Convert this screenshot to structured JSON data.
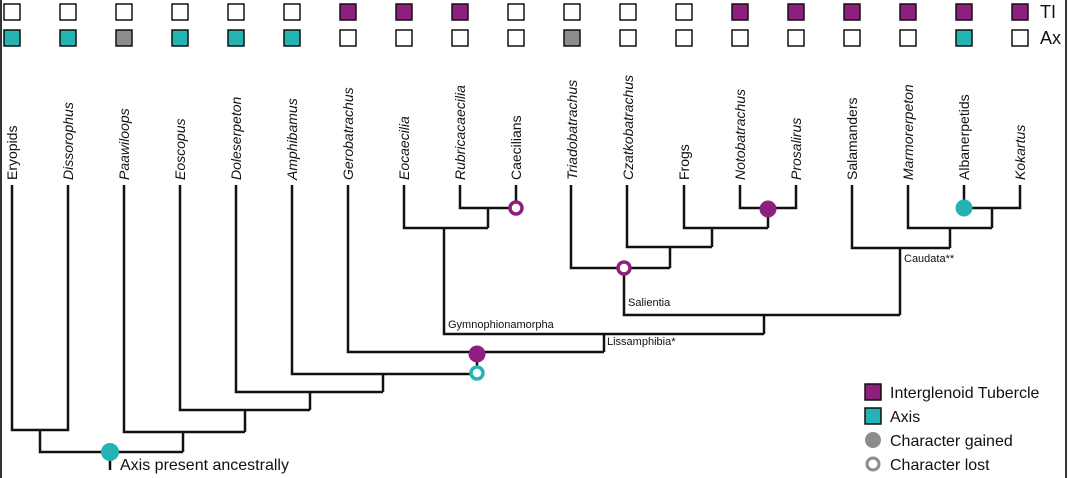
{
  "taxa": [
    {
      "name": "Eryopids",
      "italic": false
    },
    {
      "name": "Dissorophus",
      "italic": true
    },
    {
      "name": "Paawiloops",
      "italic": true
    },
    {
      "name": "Eoscopus",
      "italic": true
    },
    {
      "name": "Doleserpeton",
      "italic": true
    },
    {
      "name": "Amphibamus",
      "italic": true
    },
    {
      "name": "Gerobatrachus",
      "italic": true
    },
    {
      "name": "Eocaecilia",
      "italic": true
    },
    {
      "name": "Rubricacaecilia",
      "italic": true
    },
    {
      "name": "Caecilians",
      "italic": false
    },
    {
      "name": "Triadobatrachus",
      "italic": true
    },
    {
      "name": "Czatkobatrachus",
      "italic": true
    },
    {
      "name": "Frogs",
      "italic": false
    },
    {
      "name": "Notobatrachus",
      "italic": true
    },
    {
      "name": "Prosalirus",
      "italic": true
    },
    {
      "name": "Salamanders",
      "italic": false
    },
    {
      "name": "Marmorerpeton",
      "italic": true
    },
    {
      "name": "Albanerpetids",
      "italic": false
    },
    {
      "name": "Kokartus",
      "italic": true
    }
  ],
  "character_rows": [
    {
      "label": "TI",
      "colors": [
        "#ffffff",
        "#ffffff",
        "#ffffff",
        "#ffffff",
        "#ffffff",
        "#ffffff",
        "#8e1f7f",
        "#8e1f7f",
        "#8e1f7f",
        "#ffffff",
        "#ffffff",
        "#ffffff",
        "#ffffff",
        "#8e1f7f",
        "#8e1f7f",
        "#8e1f7f",
        "#8e1f7f",
        "#8e1f7f",
        "#8e1f7f"
      ]
    },
    {
      "label": "Ax",
      "colors": [
        "#23b3b3",
        "#23b3b3",
        "#8c8c8c",
        "#23b3b3",
        "#23b3b3",
        "#23b3b3",
        "#ffffff",
        "#ffffff",
        "#ffffff",
        "#ffffff",
        "#8c8c8c",
        "#ffffff",
        "#ffffff",
        "#ffffff",
        "#ffffff",
        "#ffffff",
        "#ffffff",
        "#23b3b3",
        "#ffffff"
      ]
    }
  ],
  "node_labels": {
    "gymnophionamorpha": "Gymnophionamorpha",
    "lissamphibia": "Lissamphibia*",
    "salientia": "Salientia",
    "caudata": "Caudata**",
    "root": "Axis present ancestrally"
  },
  "legend": [
    {
      "label": "Interglenoid Tubercle",
      "color": "#8e1f7f",
      "shape": "square"
    },
    {
      "label": "Axis",
      "color": "#23b3b3",
      "shape": "square"
    },
    {
      "label": "Character gained",
      "color": "#8c8c8c",
      "shape": "filled-circle"
    },
    {
      "label": "Character lost",
      "color": "#8c8c8c",
      "shape": "hollow-circle"
    }
  ]
}
